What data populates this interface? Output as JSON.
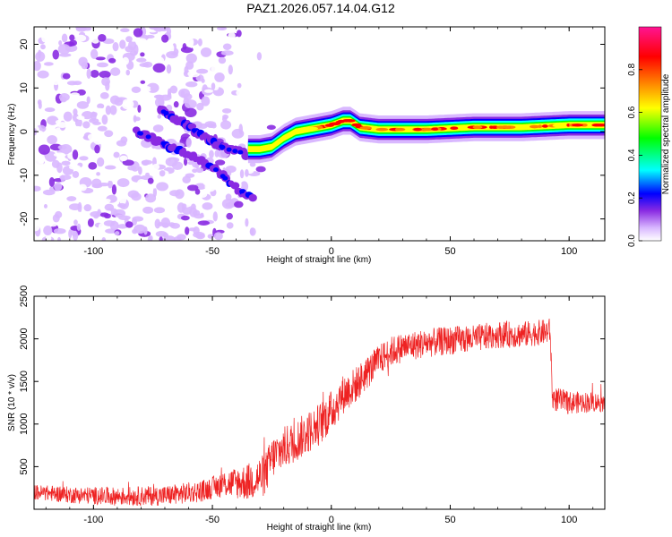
{
  "title": "PAZ1.2026.057.14.04.G12",
  "chart_data": [
    {
      "type": "heatmap",
      "name": "spectrogram",
      "xlabel": "Height of straight line (km)",
      "ylabel": "Frequency (Hz)",
      "xlim": [
        -125,
        115
      ],
      "ylim": [
        -25,
        24
      ],
      "xticks": [
        -100,
        -50,
        0,
        50,
        100
      ],
      "yticks": [
        -20,
        -10,
        0,
        10,
        20
      ],
      "colorbar": {
        "label": "Normalized spectral amplitude",
        "range": [
          0,
          1
        ],
        "ticks": [
          0.0,
          0.2,
          0.4,
          0.6,
          0.8
        ],
        "tick_labels": [
          "0.0",
          "0.2",
          "0.4",
          "0.6",
          "0.8"
        ],
        "colors": [
          "#ffffff",
          "#d9b8ff",
          "#8a2be2",
          "#0000ff",
          "#00ffff",
          "#00ff00",
          "#ffff00",
          "#ff8000",
          "#ff0000",
          "#ff1493"
        ]
      },
      "ridge": {
        "x": [
          -35,
          -30,
          -25,
          -20,
          -15,
          -10,
          -5,
          0,
          5,
          8,
          12,
          20,
          40,
          60,
          80,
          100,
          115
        ],
        "freq": [
          -4,
          -4,
          -3.5,
          -1.5,
          0,
          0.5,
          1,
          1.5,
          2.5,
          2.5,
          1,
          0.5,
          0.5,
          1,
          1,
          1.5,
          1.5
        ]
      },
      "diagonal_tracks": [
        {
          "x": [
            -82,
            -65,
            -50,
            -40,
            -33
          ],
          "freq": [
            0,
            -4,
            -8,
            -13,
            -15
          ]
        },
        {
          "x": [
            -72,
            -62,
            -52,
            -44,
            -36
          ],
          "freq": [
            5,
            2,
            -2,
            -4,
            -5
          ]
        }
      ]
    },
    {
      "type": "line",
      "name": "snr",
      "xlabel": "Height of straight line (km)",
      "ylabel": "SNR (10 * v/v)",
      "xlim": [
        -125,
        115
      ],
      "ylim": [
        0,
        2500
      ],
      "xticks": [
        -100,
        -50,
        0,
        50,
        100
      ],
      "yticks": [
        500,
        1000,
        1500,
        2000,
        2500
      ],
      "color": "#ee2222",
      "trend": {
        "x": [
          -125,
          -110,
          -90,
          -70,
          -55,
          -45,
          -35,
          -28,
          -25,
          -20,
          -15,
          -10,
          -5,
          0,
          5,
          10,
          15,
          20,
          25,
          30,
          40,
          50,
          60,
          70,
          80,
          90,
          92,
          93,
          100,
          110,
          115
        ],
        "y": [
          200,
          170,
          150,
          160,
          210,
          300,
          320,
          400,
          600,
          720,
          800,
          900,
          1000,
          1150,
          1350,
          1450,
          1600,
          1750,
          1850,
          1900,
          1950,
          1980,
          2000,
          2050,
          2050,
          2080,
          2100,
          1300,
          1250,
          1260,
          1250
        ]
      },
      "noise_amplitude": [
        {
          "x": -125,
          "amp": 90
        },
        {
          "x": -50,
          "amp": 130
        },
        {
          "x": -30,
          "amp": 250
        },
        {
          "x": 0,
          "amp": 250
        },
        {
          "x": 20,
          "amp": 180
        },
        {
          "x": 90,
          "amp": 150
        },
        {
          "x": 115,
          "amp": 110
        }
      ]
    }
  ]
}
